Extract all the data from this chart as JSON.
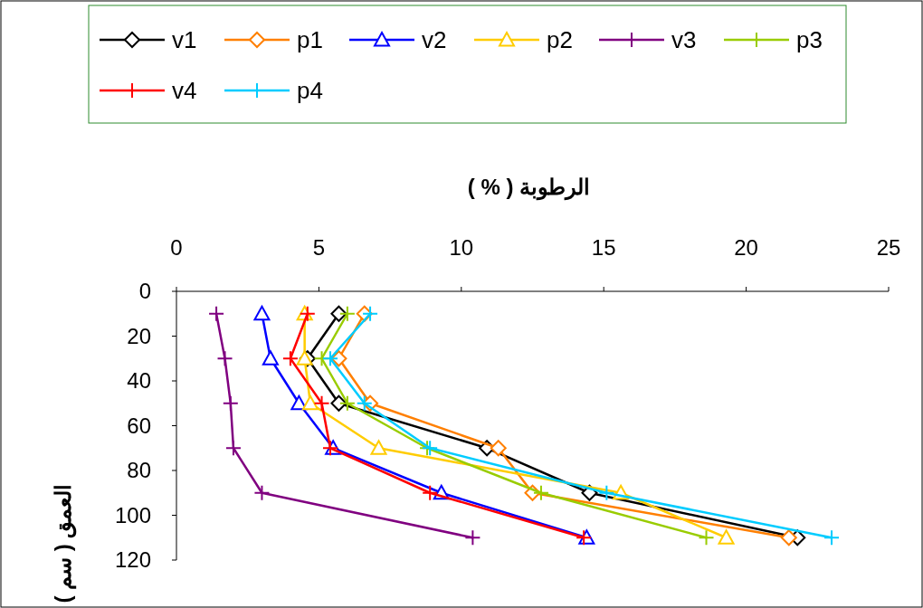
{
  "chart_data": {
    "type": "line",
    "xlabel": "الرطوبة ( % )",
    "ylabel": "العمق ( سم )",
    "xlim": [
      0,
      25
    ],
    "xticks": [
      0,
      5,
      10,
      15,
      20,
      25
    ],
    "ylim": [
      120,
      0
    ],
    "yticks": [
      0,
      20,
      40,
      60,
      80,
      100,
      120
    ],
    "grid": false,
    "legend": "top",
    "line_style": "solid",
    "series": [
      {
        "name": "v1",
        "color": "#000000",
        "marker": "diamond",
        "x": [
          5.7,
          4.6,
          5.7,
          10.9,
          14.5,
          21.8
        ],
        "values": [
          10,
          30,
          50,
          70,
          90,
          110
        ]
      },
      {
        "name": "p1",
        "color": "#ff7f00",
        "marker": "diamond",
        "x": [
          6.6,
          5.7,
          6.8,
          11.3,
          12.5,
          21.5
        ],
        "values": [
          10,
          30,
          50,
          70,
          90,
          110
        ]
      },
      {
        "name": "v2",
        "color": "#0000ff",
        "marker": "triangle",
        "x": [
          3.0,
          3.3,
          4.3,
          5.5,
          9.3,
          14.4
        ],
        "values": [
          10,
          30,
          50,
          70,
          90,
          110
        ]
      },
      {
        "name": "p2",
        "color": "#ffcc00",
        "marker": "triangle",
        "x": [
          4.5,
          4.5,
          4.7,
          7.1,
          15.6,
          19.3
        ],
        "values": [
          10,
          30,
          50,
          70,
          90,
          110
        ]
      },
      {
        "name": "v3",
        "color": "#800080",
        "marker": "cross",
        "x": [
          1.4,
          1.7,
          1.9,
          2.0,
          3.0,
          10.4
        ],
        "values": [
          10,
          30,
          50,
          70,
          90,
          110
        ]
      },
      {
        "name": "p3",
        "color": "#99cc00",
        "marker": "cross",
        "x": [
          6.0,
          5.1,
          6.0,
          8.8,
          12.8,
          18.6
        ],
        "values": [
          10,
          30,
          50,
          70,
          90,
          110
        ]
      },
      {
        "name": "v4",
        "color": "#ff0000",
        "marker": "cross",
        "x": [
          4.6,
          4.0,
          5.1,
          5.4,
          8.9,
          14.3
        ],
        "values": [
          10,
          30,
          50,
          70,
          90,
          110
        ]
      },
      {
        "name": "p4",
        "color": "#00ccff",
        "marker": "cross",
        "x": [
          6.8,
          5.4,
          6.6,
          8.9,
          15.1,
          23.0
        ],
        "values": [
          10,
          30,
          50,
          70,
          90,
          110
        ]
      }
    ]
  }
}
